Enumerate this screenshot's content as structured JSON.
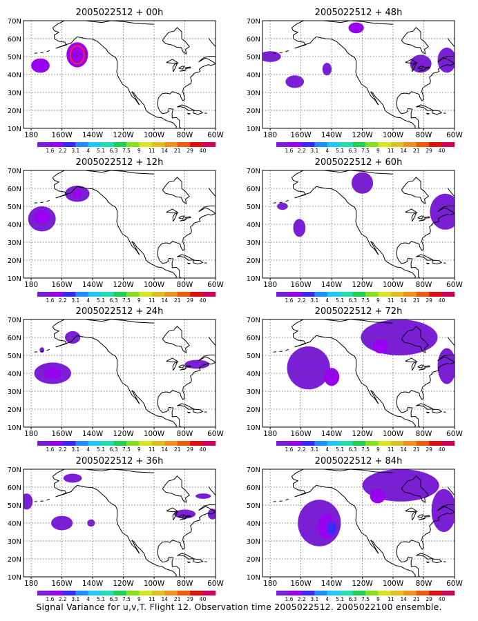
{
  "caption": "Signal Variance for u,v,T. Flight 12. Observation time 2005022512. 2005022100 ensemble.",
  "colors": {
    "levels": [
      "#7a1fd6",
      "#9a00f0",
      "#3b28ff",
      "#1f8cff",
      "#1ec8ff",
      "#20e0b0",
      "#20d050",
      "#86e020",
      "#d6e620",
      "#e0c020",
      "#f09020",
      "#f05a10",
      "#e01010",
      "#d0005a"
    ],
    "outline_highlight": "#ff2040",
    "map_lines": "#000000",
    "grid": "#555555"
  },
  "chart_data": {
    "type": "heatmap",
    "shared": {
      "x_ticks": [
        "180",
        "160W",
        "140W",
        "120W",
        "100W",
        "80W",
        "60W"
      ],
      "y_ticks": [
        "10N",
        "20N",
        "30N",
        "40N",
        "50N",
        "60N",
        "70N"
      ],
      "lon_range": [
        -185,
        -60
      ],
      "lat_range": [
        10,
        70
      ],
      "grid": true,
      "colorbar_labels": [
        "1.6",
        "2.2",
        "3.1",
        "4",
        "5.1",
        "6.3",
        "7.5",
        "9",
        "11",
        "14",
        "21",
        "29",
        "40"
      ]
    },
    "panels": [
      {
        "title": "2005022512 + 00h",
        "blobs": [
          {
            "lon": -174,
            "lat": 45,
            "rx": 6,
            "ry": 4,
            "level": 1
          },
          {
            "lon": -150,
            "lat": 51,
            "rx": 7,
            "ry": 7,
            "level": 1
          },
          {
            "lon": -150,
            "lat": 51,
            "rx": 4.5,
            "ry": 5,
            "level": 2,
            "outline": true
          }
        ]
      },
      {
        "title": "2005022512 + 48h",
        "blobs": [
          {
            "lon": -180,
            "lat": 50,
            "rx": 7,
            "ry": 3,
            "level": 0
          },
          {
            "lon": -164,
            "lat": 36,
            "rx": 6,
            "ry": 3.5,
            "level": 0
          },
          {
            "lon": -143,
            "lat": 43,
            "rx": 3,
            "ry": 3.5,
            "level": 0
          },
          {
            "lon": -124,
            "lat": 66,
            "rx": 5,
            "ry": 3,
            "level": 1
          },
          {
            "lon": -82,
            "lat": 46,
            "rx": 7,
            "ry": 5,
            "level": 0
          },
          {
            "lon": -65,
            "lat": 48,
            "rx": 6,
            "ry": 7,
            "level": 0
          }
        ]
      },
      {
        "title": "2005022512 + 12h",
        "blobs": [
          {
            "lon": -173,
            "lat": 43,
            "rx": 9,
            "ry": 7,
            "level": 0
          },
          {
            "lon": -173,
            "lat": 44,
            "rx": 5,
            "ry": 4,
            "level": 1
          },
          {
            "lon": -150,
            "lat": 57,
            "rx": 8,
            "ry": 4.5,
            "level": 0
          },
          {
            "lon": -150,
            "lat": 57,
            "rx": 3,
            "ry": 2.5,
            "level": 1
          }
        ]
      },
      {
        "title": "2005022512 + 60h",
        "blobs": [
          {
            "lon": -120,
            "lat": 63,
            "rx": 7,
            "ry": 6,
            "level": 0
          },
          {
            "lon": -172,
            "lat": 50,
            "rx": 3.5,
            "ry": 2,
            "level": 0
          },
          {
            "lon": -161,
            "lat": 38,
            "rx": 4,
            "ry": 5,
            "level": 0
          },
          {
            "lon": -66,
            "lat": 47,
            "rx": 10,
            "ry": 10,
            "level": 0
          }
        ]
      },
      {
        "title": "2005022512 + 24h",
        "blobs": [
          {
            "lon": -166,
            "lat": 40,
            "rx": 12,
            "ry": 6,
            "level": 0
          },
          {
            "lon": -166,
            "lat": 40,
            "rx": 6,
            "ry": 3,
            "level": 1
          },
          {
            "lon": -153,
            "lat": 60,
            "rx": 5,
            "ry": 3.5,
            "level": 0
          },
          {
            "lon": -173,
            "lat": 53,
            "rx": 1.5,
            "ry": 1.5,
            "level": 0
          },
          {
            "lon": -72,
            "lat": 45,
            "rx": 8,
            "ry": 2.5,
            "level": 0
          }
        ]
      },
      {
        "title": "2005022512 + 72h",
        "blobs": [
          {
            "lon": -155,
            "lat": 43,
            "rx": 14,
            "ry": 12,
            "level": 0
          },
          {
            "lon": -140,
            "lat": 38,
            "rx": 5,
            "ry": 5,
            "level": 1
          },
          {
            "lon": -96,
            "lat": 60,
            "rx": 25,
            "ry": 10,
            "level": 0
          },
          {
            "lon": -108,
            "lat": 55,
            "rx": 5,
            "ry": 4,
            "level": 1
          },
          {
            "lon": -65,
            "lat": 44,
            "rx": 6,
            "ry": 10,
            "level": 0
          }
        ]
      },
      {
        "title": "2005022512 + 36h",
        "blobs": [
          {
            "lon": -183,
            "lat": 52,
            "rx": 4,
            "ry": 4.5,
            "level": 0
          },
          {
            "lon": -153,
            "lat": 65,
            "rx": 6,
            "ry": 2.5,
            "level": 0
          },
          {
            "lon": -160,
            "lat": 40,
            "rx": 7,
            "ry": 4,
            "level": 0
          },
          {
            "lon": -141,
            "lat": 40,
            "rx": 2.5,
            "ry": 2,
            "level": 0
          },
          {
            "lon": -68,
            "lat": 55,
            "rx": 5,
            "ry": 1.5,
            "level": 0
          },
          {
            "lon": -80,
            "lat": 45,
            "rx": 7,
            "ry": 2.5,
            "level": 0
          },
          {
            "lon": -62,
            "lat": 45,
            "rx": 3,
            "ry": 3,
            "level": 0
          }
        ]
      },
      {
        "title": "2005022512 + 84h",
        "blobs": [
          {
            "lon": -148,
            "lat": 40,
            "rx": 14,
            "ry": 13,
            "level": 0
          },
          {
            "lon": -143,
            "lat": 38,
            "rx": 6,
            "ry": 7,
            "level": 1
          },
          {
            "lon": -140,
            "lat": 37,
            "rx": 3,
            "ry": 4,
            "level": 2
          },
          {
            "lon": -95,
            "lat": 61,
            "rx": 25,
            "ry": 9,
            "level": 0
          },
          {
            "lon": -110,
            "lat": 55,
            "rx": 5,
            "ry": 4,
            "level": 1
          },
          {
            "lon": -67,
            "lat": 47,
            "rx": 8,
            "ry": 12,
            "level": 0
          }
        ]
      }
    ]
  }
}
